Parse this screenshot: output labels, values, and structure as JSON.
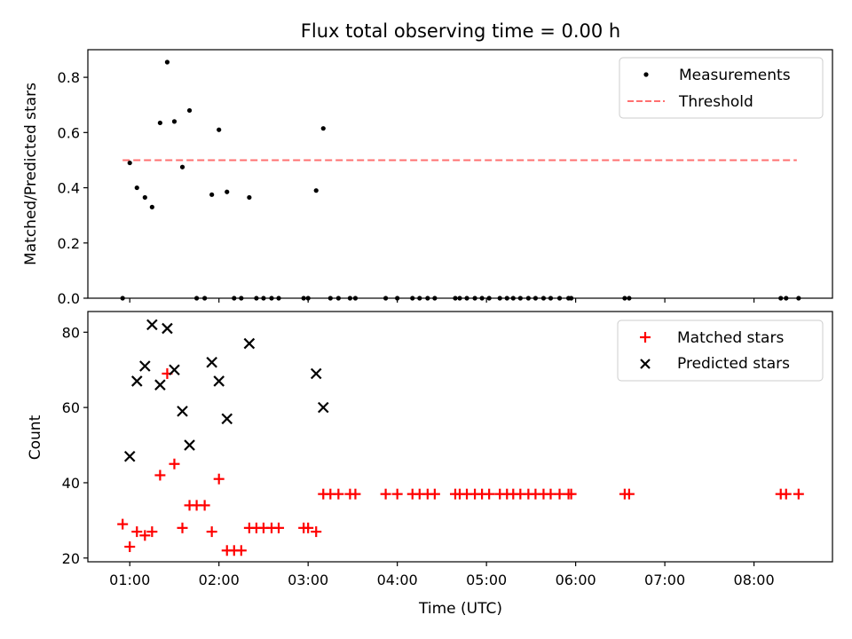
{
  "title": "Flux total observing time = 0.00 h",
  "chart_data": [
    {
      "type": "scatter",
      "ylabel": "Matched/Predicted stars",
      "xlim_hours": [
        0.53,
        8.88
      ],
      "ylim": [
        0,
        0.9
      ],
      "yticks": [
        0.0,
        0.2,
        0.4,
        0.6,
        0.8
      ],
      "ytick_labels": [
        "0.0",
        "0.2",
        "0.4",
        "0.6",
        "0.8"
      ],
      "legend": {
        "placement": "upper-right",
        "entries": [
          {
            "label": "Measurements",
            "marker": "dot",
            "color": "#000000"
          },
          {
            "label": "Threshold",
            "marker": "dashed-line",
            "color": "#ff7070"
          }
        ]
      },
      "threshold": {
        "value": 0.5,
        "x_from_hours": 0.92,
        "x_to_hours": 8.48
      },
      "measurements": {
        "x_hours": [
          0.92,
          1.0,
          1.08,
          1.17,
          1.25,
          1.34,
          1.42,
          1.5,
          1.59,
          1.67,
          1.75,
          1.84,
          1.92,
          2.0,
          2.09,
          2.17,
          2.25,
          2.34,
          2.42,
          2.5,
          2.59,
          2.67,
          2.95,
          3.0,
          3.09,
          3.17,
          3.25,
          3.34,
          3.47,
          3.53,
          3.87,
          4.0,
          4.17,
          4.25,
          4.34,
          4.42,
          4.65,
          4.7,
          4.78,
          4.87,
          4.95,
          5.03,
          5.15,
          5.23,
          5.3,
          5.38,
          5.47,
          5.55,
          5.64,
          5.72,
          5.82,
          5.92,
          5.95,
          6.55,
          6.6,
          8.3,
          8.36,
          8.5
        ],
        "y": [
          0.0,
          0.49,
          0.4,
          0.365,
          0.33,
          0.635,
          0.855,
          0.64,
          0.475,
          0.68,
          0.0,
          0.0,
          0.375,
          0.61,
          0.385,
          0.0,
          0.0,
          0.365,
          0.0,
          0.0,
          0.0,
          0.0,
          0.0,
          0.0,
          0.39,
          0.615,
          0.0,
          0.0,
          0.0,
          0.0,
          0.0,
          0.0,
          0.0,
          0.0,
          0.0,
          0.0,
          0.0,
          0.0,
          0.0,
          0.0,
          0.0,
          0.0,
          0.0,
          0.0,
          0.0,
          0.0,
          0.0,
          0.0,
          0.0,
          0.0,
          0.0,
          0.0,
          0.0,
          0.0,
          0.0,
          0.0,
          0.0,
          0.0
        ]
      }
    },
    {
      "type": "scatter",
      "ylabel": "Count",
      "xlabel": "Time (UTC)",
      "xlim_hours": [
        0.53,
        8.88
      ],
      "ylim": [
        19,
        85.5
      ],
      "yticks": [
        20,
        40,
        60,
        80
      ],
      "ytick_labels": [
        "20",
        "40",
        "60",
        "80"
      ],
      "xticks_hours": [
        1,
        2,
        3,
        4,
        5,
        6,
        7,
        8
      ],
      "xtick_labels": [
        "01:00",
        "02:00",
        "03:00",
        "04:00",
        "05:00",
        "06:00",
        "07:00",
        "08:00"
      ],
      "legend": {
        "placement": "upper-right",
        "entries": [
          {
            "label": "Matched stars",
            "marker": "plus",
            "color": "#ff0000"
          },
          {
            "label": "Predicted stars",
            "marker": "x",
            "color": "#000000"
          }
        ]
      },
      "matched": {
        "x_hours": [
          0.92,
          1.0,
          1.08,
          1.17,
          1.25,
          1.34,
          1.42,
          1.5,
          1.59,
          1.67,
          1.75,
          1.84,
          1.92,
          2.0,
          2.09,
          2.17,
          2.25,
          2.34,
          2.42,
          2.5,
          2.59,
          2.67,
          2.95,
          3.0,
          3.09,
          3.17,
          3.25,
          3.34,
          3.47,
          3.53,
          3.87,
          4.0,
          4.17,
          4.25,
          4.34,
          4.42,
          4.65,
          4.7,
          4.78,
          4.87,
          4.95,
          5.03,
          5.15,
          5.23,
          5.3,
          5.38,
          5.47,
          5.55,
          5.64,
          5.72,
          5.82,
          5.92,
          5.95,
          6.55,
          6.6,
          8.3,
          8.36,
          8.5
        ],
        "y": [
          29,
          23,
          27,
          26,
          27,
          42,
          69,
          45,
          28,
          34,
          34,
          34,
          27,
          41,
          22,
          22,
          22,
          28,
          28,
          28,
          28,
          28,
          28,
          28,
          27,
          37,
          37,
          37,
          37,
          37,
          37,
          37,
          37,
          37,
          37,
          37,
          37,
          37,
          37,
          37,
          37,
          37,
          37,
          37,
          37,
          37,
          37,
          37,
          37,
          37,
          37,
          37,
          37,
          37,
          37,
          37,
          37,
          37
        ]
      },
      "predicted": {
        "x_hours": [
          1.0,
          1.08,
          1.17,
          1.25,
          1.34,
          1.42,
          1.5,
          1.59,
          1.67,
          1.92,
          2.0,
          2.09,
          2.34,
          3.09,
          3.17
        ],
        "y": [
          47,
          67,
          71,
          82,
          66,
          81,
          70,
          59,
          50,
          72,
          67,
          57,
          77,
          69,
          60
        ]
      }
    }
  ]
}
